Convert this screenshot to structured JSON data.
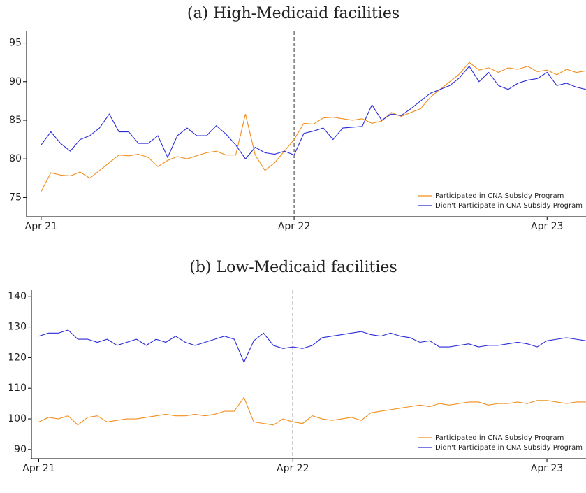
{
  "chart_data": [
    {
      "type": "line",
      "title": "(a) High-Medicaid facilities",
      "x": [
        0,
        2,
        4,
        6,
        8,
        10,
        12,
        14,
        16,
        18,
        20,
        22,
        24,
        26,
        28,
        30,
        32,
        34,
        36,
        38,
        40,
        42,
        44,
        46,
        48,
        50,
        52,
        54,
        56,
        58,
        60,
        62,
        64,
        66,
        68,
        70,
        72,
        74,
        76,
        78,
        80,
        82,
        84,
        86,
        88,
        90,
        92,
        94,
        96,
        98,
        100,
        102,
        104,
        106,
        108,
        110,
        112
      ],
      "xlim": [
        -3,
        112
      ],
      "xticks": [
        {
          "value": 0,
          "label": "Apr 21"
        },
        {
          "value": 52,
          "label": "Apr 22"
        },
        {
          "value": 104,
          "label": "Apr 23"
        }
      ],
      "ylim": [
        72.5,
        96.5
      ],
      "yticks": [
        75,
        80,
        85,
        90,
        95
      ],
      "vline": 52,
      "grid": false,
      "legend": "lower right",
      "series": [
        {
          "name": "Participated in CNA Subsidy Program",
          "color": "#f28e1c",
          "values": [
            75.8,
            78.2,
            77.9,
            77.8,
            78.3,
            77.5,
            78.5,
            79.5,
            80.5,
            80.4,
            80.6,
            80.2,
            79,
            79.8,
            80.3,
            80,
            80.4,
            80.8,
            81,
            80.5,
            80.5,
            85.8,
            80.5,
            78.5,
            79.5,
            81,
            82.5,
            84.6,
            84.5,
            85.3,
            85.4,
            85.2,
            85,
            85.2,
            84.6,
            84.9,
            86,
            85.5,
            86,
            86.5,
            88,
            89,
            90,
            91,
            92.5,
            91.5,
            91.8,
            91.2,
            91.8,
            91.6,
            92,
            91.3,
            91.5,
            90.9,
            91.6,
            91.2,
            91.4
          ]
        },
        {
          "name": "Didn't Participate in CNA Subsidy Program",
          "color": "#2a2ad8",
          "values": [
            81.8,
            83.5,
            82,
            81,
            82.5,
            83,
            84,
            85.8,
            83.5,
            83.5,
            82,
            82,
            83,
            80.2,
            83,
            84,
            83,
            83,
            84.3,
            83.2,
            81.8,
            80,
            81.5,
            80.8,
            80.6,
            81,
            80.5,
            83.3,
            83.6,
            84,
            82.5,
            84,
            84.1,
            84.2,
            87,
            85,
            85.8,
            85.6,
            86.5,
            87.5,
            88.5,
            89,
            89.5,
            90.5,
            92,
            90,
            91.2,
            89.5,
            89,
            89.8,
            90.2,
            90.4,
            91.2,
            89.5,
            89.8,
            89.3,
            89
          ]
        }
      ]
    },
    {
      "type": "line",
      "title": "(b) Low-Medicaid facilities",
      "x": [
        0,
        2,
        4,
        6,
        8,
        10,
        12,
        14,
        16,
        18,
        20,
        22,
        24,
        26,
        28,
        30,
        32,
        34,
        36,
        38,
        40,
        42,
        44,
        46,
        48,
        50,
        52,
        54,
        56,
        58,
        60,
        62,
        64,
        66,
        68,
        70,
        72,
        74,
        76,
        78,
        80,
        82,
        84,
        86,
        88,
        90,
        92,
        94,
        96,
        98,
        100,
        102,
        104,
        106,
        108,
        110,
        112
      ],
      "xlim": [
        -1.5,
        112
      ],
      "xticks": [
        {
          "value": 0,
          "label": "Apr 21"
        },
        {
          "value": 52,
          "label": "Apr 22"
        },
        {
          "value": 104,
          "label": "Apr 23"
        }
      ],
      "ylim": [
        87,
        142
      ],
      "yticks": [
        90,
        100,
        110,
        120,
        130,
        140
      ],
      "vline": 52,
      "grid": false,
      "legend": "lower right",
      "series": [
        {
          "name": "Participated in CNA Subsidy Program",
          "color": "#f28e1c",
          "values": [
            99,
            100.5,
            100,
            101,
            98,
            100.5,
            101,
            99,
            99.5,
            100,
            100,
            100.5,
            101,
            101.5,
            101,
            101,
            101.5,
            101,
            101.5,
            102.5,
            102.5,
            107,
            99,
            98.5,
            98,
            100,
            99,
            98.5,
            101,
            100,
            99.5,
            100,
            100.5,
            99.5,
            102,
            102.5,
            103,
            103.5,
            104,
            104.5,
            104,
            105,
            104.5,
            105,
            105.5,
            105.5,
            104.5,
            105,
            105,
            105.5,
            105,
            106,
            106,
            105.5,
            105,
            105.5,
            105.5
          ]
        },
        {
          "name": "Didn't Participate in CNA Subsidy Program",
          "color": "#2a2ad8",
          "values": [
            127,
            128,
            128,
            129,
            126,
            126,
            125,
            126,
            124,
            125,
            126,
            124,
            126,
            125,
            127,
            125,
            124,
            125,
            126,
            127,
            126,
            118.5,
            125.5,
            128,
            124,
            123,
            123.5,
            123,
            124,
            126.5,
            127,
            127.5,
            128,
            128.5,
            127.5,
            127,
            128,
            127,
            126.5,
            125,
            125.5,
            123.5,
            123.5,
            124,
            124.5,
            123.5,
            124,
            124,
            124.5,
            125,
            124.5,
            123.5,
            125.5,
            126,
            126.5,
            126,
            125.5
          ]
        }
      ]
    }
  ]
}
